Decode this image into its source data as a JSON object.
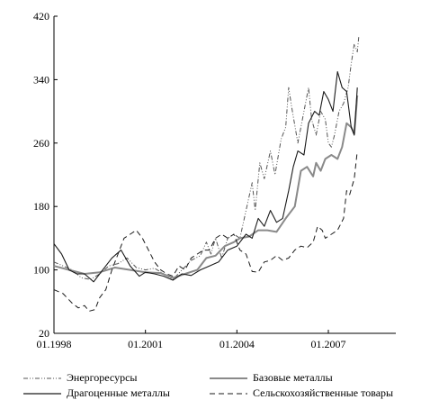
{
  "chart_data": {
    "type": "line",
    "title": "",
    "xlabel": "",
    "ylabel": "",
    "x_ticks": [
      "01.1998",
      "01.2001",
      "01.2004",
      "01.2007"
    ],
    "y_ticks": [
      20,
      100,
      180,
      260,
      340,
      420
    ],
    "ylim": [
      20,
      420
    ],
    "xlim": [
      1998.0,
      2008.1
    ],
    "grid": false,
    "legend_position": "bottom",
    "series": [
      {
        "name": "Энергоресурсы",
        "style": "dash-dot-dot",
        "color": "#555555",
        "points": [
          [
            1998.0,
            110
          ],
          [
            1998.3,
            105
          ],
          [
            1998.6,
            100
          ],
          [
            1998.9,
            90
          ],
          [
            1999.2,
            88
          ],
          [
            1999.5,
            95
          ],
          [
            1999.8,
            105
          ],
          [
            2000.1,
            108
          ],
          [
            2000.4,
            115
          ],
          [
            2000.7,
            103
          ],
          [
            2001.0,
            100
          ],
          [
            2001.3,
            102
          ],
          [
            2001.6,
            95
          ],
          [
            2001.9,
            88
          ],
          [
            2002.2,
            100
          ],
          [
            2002.5,
            112
          ],
          [
            2002.8,
            118
          ],
          [
            2003.0,
            135
          ],
          [
            2003.15,
            120
          ],
          [
            2003.3,
            140
          ],
          [
            2003.5,
            115
          ],
          [
            2003.7,
            140
          ],
          [
            2003.9,
            145
          ],
          [
            2004.1,
            140
          ],
          [
            2004.3,
            175
          ],
          [
            2004.5,
            210
          ],
          [
            2004.6,
            175
          ],
          [
            2004.75,
            235
          ],
          [
            2004.9,
            215
          ],
          [
            2005.1,
            250
          ],
          [
            2005.25,
            220
          ],
          [
            2005.45,
            265
          ],
          [
            2005.6,
            280
          ],
          [
            2005.7,
            330
          ],
          [
            2005.8,
            305
          ],
          [
            2006.0,
            260
          ],
          [
            2006.2,
            300
          ],
          [
            2006.35,
            330
          ],
          [
            2006.45,
            290
          ],
          [
            2006.6,
            270
          ],
          [
            2006.75,
            300
          ],
          [
            2006.9,
            290
          ],
          [
            2007.0,
            260
          ],
          [
            2007.1,
            255
          ],
          [
            2007.2,
            270
          ],
          [
            2007.35,
            300
          ],
          [
            2007.5,
            310
          ],
          [
            2007.65,
            330
          ],
          [
            2007.75,
            360
          ],
          [
            2007.85,
            385
          ],
          [
            2007.95,
            375
          ],
          [
            2008.0,
            395
          ]
        ]
      },
      {
        "name": "Базовые металлы",
        "style": "solid-thick",
        "color": "#8a8a8a",
        "points": [
          [
            1998.0,
            105
          ],
          [
            1998.5,
            100
          ],
          [
            1999.0,
            95
          ],
          [
            1999.5,
            97
          ],
          [
            2000.0,
            103
          ],
          [
            2000.5,
            100
          ],
          [
            2001.0,
            97
          ],
          [
            2001.5,
            96
          ],
          [
            2001.9,
            90
          ],
          [
            2002.3,
            95
          ],
          [
            2002.7,
            100
          ],
          [
            2003.0,
            115
          ],
          [
            2003.3,
            118
          ],
          [
            2003.6,
            130
          ],
          [
            2003.9,
            135
          ],
          [
            2004.1,
            140
          ],
          [
            2004.4,
            142
          ],
          [
            2004.7,
            150
          ],
          [
            2005.0,
            150
          ],
          [
            2005.3,
            148
          ],
          [
            2005.6,
            165
          ],
          [
            2005.9,
            180
          ],
          [
            2006.1,
            225
          ],
          [
            2006.3,
            230
          ],
          [
            2006.5,
            218
          ],
          [
            2006.6,
            235
          ],
          [
            2006.75,
            225
          ],
          [
            2006.9,
            240
          ],
          [
            2007.1,
            245
          ],
          [
            2007.3,
            240
          ],
          [
            2007.45,
            255
          ],
          [
            2007.6,
            285
          ],
          [
            2007.75,
            280
          ],
          [
            2007.85,
            272
          ],
          [
            2007.95,
            320
          ]
        ]
      },
      {
        "name": "Драгоценные металлы",
        "style": "solid",
        "color": "#1a1a1a",
        "points": [
          [
            1998.0,
            133
          ],
          [
            1998.25,
            120
          ],
          [
            1998.5,
            100
          ],
          [
            1998.75,
            95
          ],
          [
            1999.0,
            95
          ],
          [
            1999.3,
            85
          ],
          [
            1999.6,
            100
          ],
          [
            1999.9,
            115
          ],
          [
            2000.2,
            125
          ],
          [
            2000.5,
            105
          ],
          [
            2000.8,
            92
          ],
          [
            2001.0,
            97
          ],
          [
            2001.3,
            95
          ],
          [
            2001.6,
            92
          ],
          [
            2001.9,
            87
          ],
          [
            2002.2,
            95
          ],
          [
            2002.5,
            93
          ],
          [
            2002.8,
            100
          ],
          [
            2003.1,
            105
          ],
          [
            2003.4,
            110
          ],
          [
            2003.7,
            125
          ],
          [
            2004.0,
            130
          ],
          [
            2004.3,
            145
          ],
          [
            2004.5,
            140
          ],
          [
            2004.7,
            165
          ],
          [
            2004.9,
            155
          ],
          [
            2005.1,
            175
          ],
          [
            2005.3,
            160
          ],
          [
            2005.5,
            165
          ],
          [
            2005.7,
            200
          ],
          [
            2005.85,
            230
          ],
          [
            2006.0,
            250
          ],
          [
            2006.2,
            245
          ],
          [
            2006.35,
            285
          ],
          [
            2006.55,
            300
          ],
          [
            2006.7,
            295
          ],
          [
            2006.85,
            325
          ],
          [
            2007.0,
            315
          ],
          [
            2007.15,
            300
          ],
          [
            2007.3,
            350
          ],
          [
            2007.45,
            330
          ],
          [
            2007.6,
            325
          ],
          [
            2007.75,
            280
          ],
          [
            2007.85,
            270
          ],
          [
            2007.95,
            330
          ]
        ]
      },
      {
        "name": "Сельскохозяйственные товары",
        "style": "dashed",
        "color": "#1a1a1a",
        "points": [
          [
            1998.0,
            75
          ],
          [
            1998.3,
            70
          ],
          [
            1998.6,
            58
          ],
          [
            1998.8,
            52
          ],
          [
            1999.0,
            55
          ],
          [
            1999.15,
            48
          ],
          [
            1999.35,
            50
          ],
          [
            1999.5,
            65
          ],
          [
            1999.7,
            75
          ],
          [
            1999.9,
            100
          ],
          [
            2000.1,
            120
          ],
          [
            2000.3,
            140
          ],
          [
            2000.5,
            145
          ],
          [
            2000.7,
            150
          ],
          [
            2000.9,
            140
          ],
          [
            2001.1,
            125
          ],
          [
            2001.3,
            110
          ],
          [
            2001.5,
            100
          ],
          [
            2001.7,
            95
          ],
          [
            2001.9,
            92
          ],
          [
            2002.1,
            105
          ],
          [
            2002.3,
            100
          ],
          [
            2002.5,
            115
          ],
          [
            2002.7,
            120
          ],
          [
            2002.9,
            125
          ],
          [
            2003.1,
            125
          ],
          [
            2003.3,
            140
          ],
          [
            2003.5,
            145
          ],
          [
            2003.7,
            140
          ],
          [
            2003.9,
            145
          ],
          [
            2004.1,
            125
          ],
          [
            2004.3,
            120
          ],
          [
            2004.5,
            98
          ],
          [
            2004.7,
            97
          ],
          [
            2004.9,
            110
          ],
          [
            2005.1,
            112
          ],
          [
            2005.3,
            118
          ],
          [
            2005.5,
            112
          ],
          [
            2005.7,
            115
          ],
          [
            2005.9,
            125
          ],
          [
            2006.1,
            130
          ],
          [
            2006.3,
            128
          ],
          [
            2006.5,
            135
          ],
          [
            2006.65,
            155
          ],
          [
            2006.8,
            150
          ],
          [
            2006.9,
            140
          ],
          [
            2007.1,
            145
          ],
          [
            2007.3,
            150
          ],
          [
            2007.5,
            165
          ],
          [
            2007.6,
            200
          ],
          [
            2007.7,
            195
          ],
          [
            2007.85,
            215
          ],
          [
            2007.95,
            250
          ]
        ]
      }
    ]
  }
}
